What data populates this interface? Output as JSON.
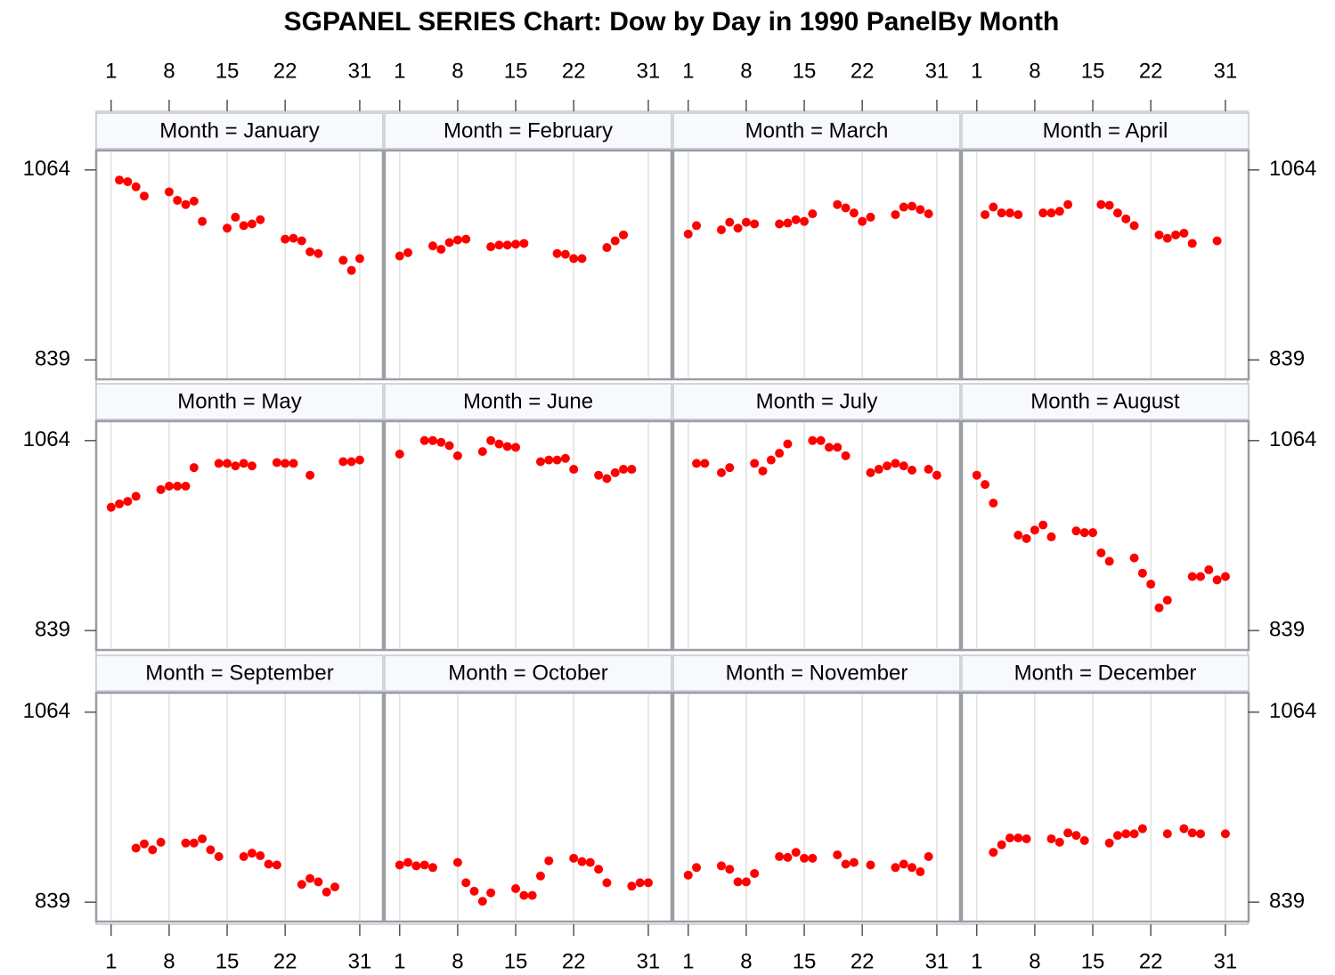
{
  "chart_data": {
    "type": "scatter",
    "title": "SGPANEL SERIES Chart: Dow by Day in 1990 PanelBy Month",
    "color": "#ff0000",
    "grid": "x",
    "xlim": [
      -0.8,
      33.8
    ],
    "xticks": [
      1,
      8,
      15,
      22,
      31
    ],
    "ylim": [
      816,
      1087
    ],
    "yticks": [
      839,
      1064
    ],
    "panels": [
      {
        "label": "Month = January",
        "x": [
          2,
          3,
          4,
          5,
          8,
          9,
          10,
          11,
          12,
          15,
          16,
          17,
          18,
          19,
          22,
          23,
          24,
          25,
          26,
          29,
          30,
          31
        ],
        "values": [
          1052,
          1050,
          1044,
          1033,
          1038,
          1028,
          1023,
          1027,
          1003,
          995,
          1008,
          998,
          1000,
          1005,
          982,
          983,
          980,
          967,
          965,
          957,
          945,
          959
        ]
      },
      {
        "label": "Month = February",
        "x": [
          1,
          2,
          5,
          6,
          7,
          8,
          9,
          12,
          13,
          14,
          15,
          16,
          20,
          21,
          22,
          23,
          26,
          27,
          28
        ],
        "values": [
          962,
          966,
          974,
          970,
          978,
          981,
          982,
          973,
          975,
          975,
          976,
          977,
          965,
          964,
          959,
          959,
          972,
          980,
          987
        ]
      },
      {
        "label": "Month = March",
        "x": [
          1,
          2,
          5,
          6,
          7,
          8,
          9,
          12,
          13,
          14,
          15,
          16,
          19,
          20,
          21,
          22,
          23,
          26,
          27,
          28,
          29,
          30
        ],
        "values": [
          988,
          998,
          993,
          1002,
          995,
          1002,
          1000,
          1000,
          1001,
          1005,
          1003,
          1012,
          1023,
          1019,
          1013,
          1003,
          1008,
          1011,
          1020,
          1021,
          1017,
          1012
        ]
      },
      {
        "label": "Month = April",
        "x": [
          2,
          3,
          4,
          5,
          6,
          9,
          10,
          11,
          12,
          16,
          17,
          18,
          19,
          20,
          23,
          24,
          25,
          26,
          27,
          30
        ],
        "values": [
          1011,
          1020,
          1013,
          1013,
          1011,
          1013,
          1013,
          1015,
          1023,
          1023,
          1022,
          1013,
          1006,
          998,
          987,
          983,
          987,
          989,
          977,
          980
        ]
      },
      {
        "label": "Month = May",
        "x": [
          1,
          2,
          3,
          4,
          7,
          8,
          9,
          10,
          11,
          14,
          15,
          16,
          17,
          18,
          21,
          22,
          23,
          25,
          29,
          30,
          31
        ],
        "values": [
          985,
          989,
          992,
          998,
          1006,
          1010,
          1010,
          1010,
          1032,
          1037,
          1037,
          1034,
          1037,
          1034,
          1038,
          1037,
          1037,
          1023,
          1039,
          1039,
          1041
        ]
      },
      {
        "label": "Month = June",
        "x": [
          1,
          4,
          5,
          6,
          7,
          8,
          11,
          12,
          13,
          14,
          15,
          18,
          19,
          20,
          21,
          22,
          25,
          26,
          27,
          28,
          29
        ],
        "values": [
          1048,
          1064,
          1064,
          1062,
          1058,
          1046,
          1051,
          1064,
          1060,
          1057,
          1056,
          1039,
          1041,
          1041,
          1043,
          1030,
          1023,
          1019,
          1026,
          1030,
          1030
        ]
      },
      {
        "label": "Month = July",
        "x": [
          2,
          3,
          5,
          6,
          9,
          10,
          11,
          12,
          13,
          16,
          17,
          18,
          19,
          20,
          23,
          24,
          25,
          26,
          27,
          28,
          30,
          31
        ],
        "values": [
          1037,
          1037,
          1026,
          1032,
          1037,
          1028,
          1041,
          1049,
          1060,
          1064,
          1064,
          1056,
          1056,
          1046,
          1026,
          1030,
          1034,
          1037,
          1034,
          1029,
          1030,
          1023
        ]
      },
      {
        "label": "Month = August",
        "x": [
          1,
          2,
          3,
          6,
          7,
          8,
          9,
          10,
          13,
          14,
          15,
          16,
          17,
          20,
          21,
          22,
          23,
          24,
          27,
          28,
          29,
          30,
          31
        ],
        "values": [
          1023,
          1012,
          990,
          952,
          948,
          958,
          964,
          950,
          957,
          955,
          955,
          931,
          921,
          925,
          907,
          894,
          866,
          875,
          903,
          903,
          911,
          899,
          903
        ]
      },
      {
        "label": "Month = September",
        "x": [
          4,
          5,
          6,
          7,
          10,
          11,
          12,
          13,
          14,
          17,
          18,
          19,
          20,
          21,
          24,
          25,
          26,
          27,
          28
        ],
        "values": [
          903,
          908,
          901,
          910,
          909,
          909,
          914,
          901,
          893,
          893,
          897,
          894,
          884,
          883,
          860,
          867,
          863,
          851,
          857
        ]
      },
      {
        "label": "Month = October",
        "x": [
          1,
          2,
          3,
          4,
          5,
          8,
          9,
          10,
          11,
          12,
          15,
          16,
          17,
          18,
          19,
          22,
          23,
          24,
          25,
          26,
          29,
          30,
          31
        ],
        "values": [
          883,
          886,
          882,
          883,
          880,
          886,
          862,
          852,
          840,
          850,
          855,
          847,
          847,
          870,
          888,
          891,
          887,
          886,
          878,
          862,
          858,
          862,
          862
        ]
      },
      {
        "label": "Month = November",
        "x": [
          1,
          2,
          5,
          6,
          7,
          8,
          9,
          12,
          13,
          14,
          15,
          16,
          19,
          20,
          21,
          23,
          26,
          27,
          28,
          29,
          30
        ],
        "values": [
          871,
          880,
          882,
          878,
          863,
          863,
          873,
          893,
          892,
          898,
          891,
          891,
          895,
          884,
          886,
          883,
          880,
          884,
          880,
          875,
          893
        ]
      },
      {
        "label": "Month = December",
        "x": [
          3,
          4,
          5,
          6,
          7,
          10,
          11,
          12,
          13,
          14,
          17,
          18,
          19,
          20,
          21,
          24,
          26,
          27,
          28,
          31
        ],
        "values": [
          898,
          907,
          915,
          915,
          914,
          914,
          910,
          921,
          918,
          912,
          909,
          918,
          920,
          920,
          926,
          920,
          926,
          921,
          920,
          920
        ]
      }
    ]
  }
}
